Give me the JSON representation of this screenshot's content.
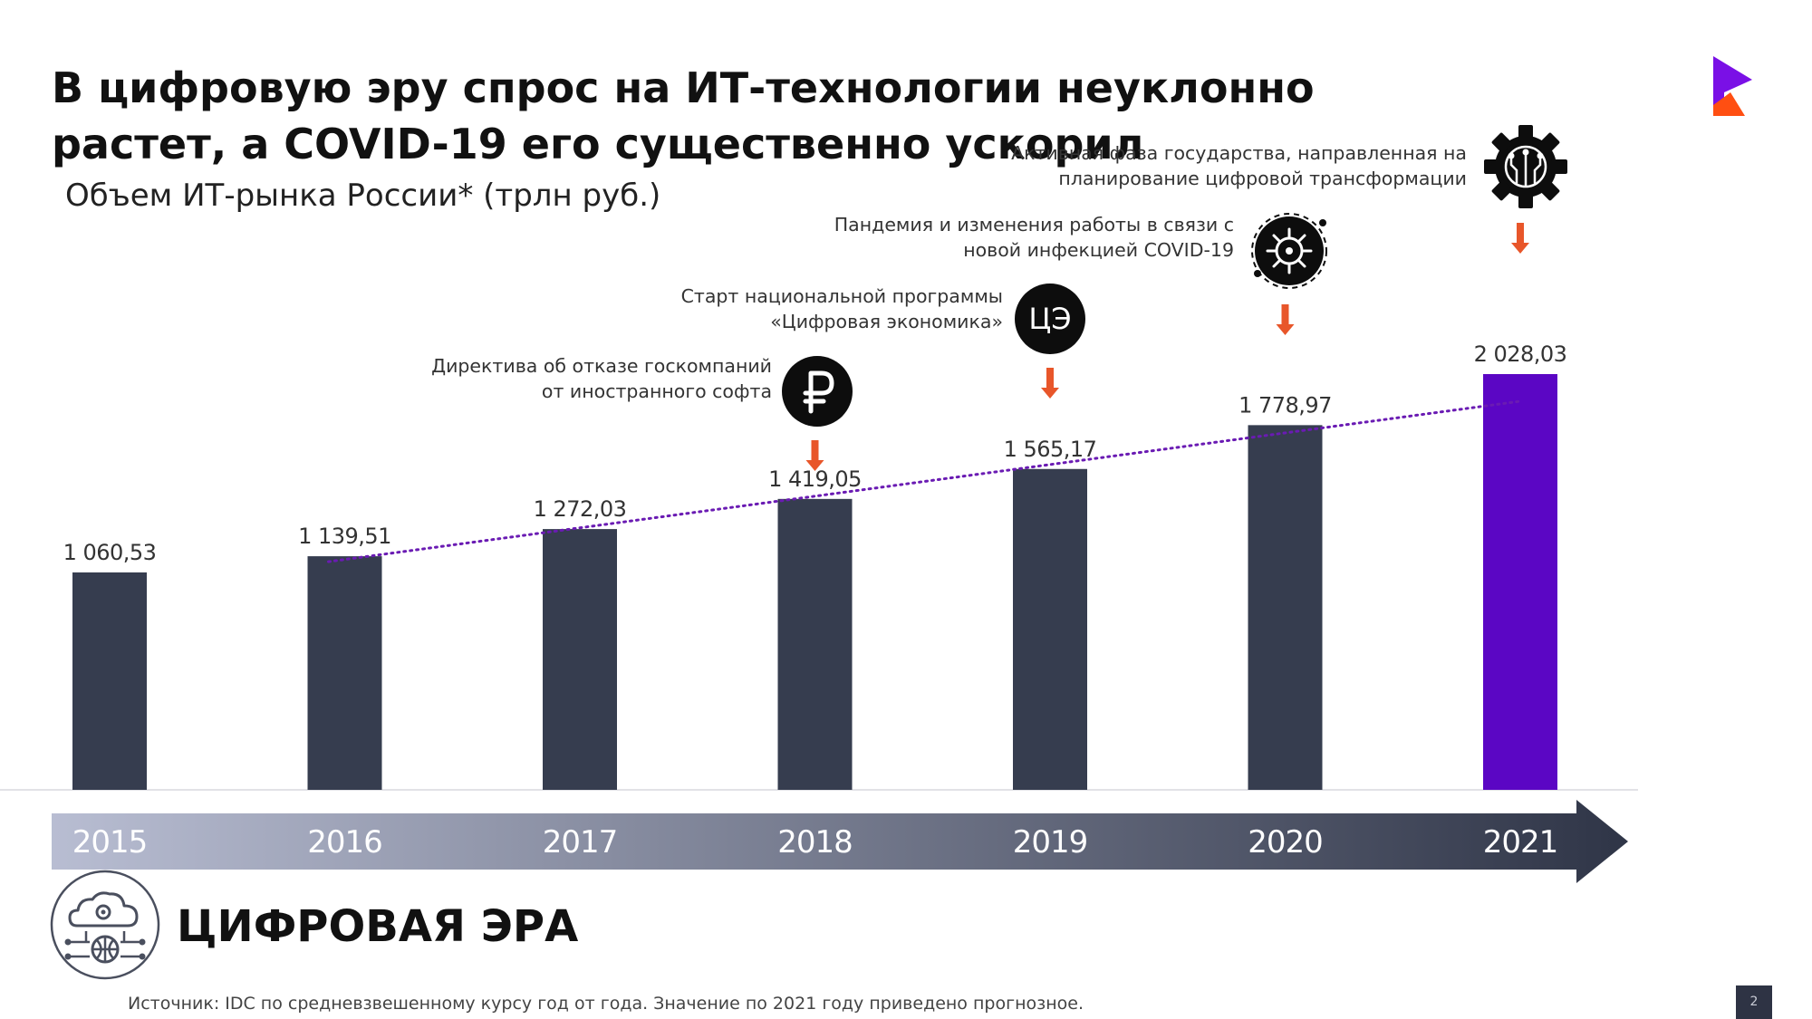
{
  "title": "В цифровую эру спрос на ИТ-технологии неуклонно растет, а COVID-19 его существенно ускорил",
  "subtitle": "Объем ИТ-рынка России* (трлн руб.)",
  "colors": {
    "bar": "#363d4f",
    "highlight_bar": "#5b06c4",
    "trend": "#6a1bb3",
    "arrow": "#e8562a",
    "timeline_start": "#b8bdd2",
    "timeline_end": "#2f3547"
  },
  "chart_data": {
    "type": "bar",
    "categories": [
      "2015",
      "2016",
      "2017",
      "2018",
      "2019",
      "2020",
      "2021"
    ],
    "values": [
      1060.53,
      1139.51,
      1272.03,
      1419.05,
      1565.17,
      1778.97,
      2028.03
    ],
    "value_labels": [
      "1 060,53",
      "1 139,51",
      "1 272,03",
      "1 419,05",
      "1 565,17",
      "1 778,97",
      "2 028,03"
    ],
    "highlighted": "2021",
    "trendline": {
      "style": "dotted",
      "from": "2016",
      "to": "2021"
    },
    "grid": false,
    "legend": "none",
    "ylim": [
      0,
      2028.03
    ]
  },
  "events": [
    {
      "year": "2018",
      "text": [
        "Директива об отказе госкомпаний",
        "от иностранного софта"
      ],
      "icon": "ruble-icon"
    },
    {
      "year": "2019",
      "text": [
        "Старт национальной программы",
        "«Цифровая экономика»"
      ],
      "icon": "digital-economy-icon",
      "badge": "ЦЭ"
    },
    {
      "year": "2020",
      "text": [
        "Пандемия и изменения работы в связи с",
        "новой инфекцией COVID-19"
      ],
      "icon": "virus-icon"
    },
    {
      "year": "2021",
      "text": [
        "Активная фаза государства, направленная на",
        "планирование цифровой трансформации"
      ],
      "icon": "gear-circuit-icon"
    }
  ],
  "era": {
    "label": "ЦИФРОВАЯ ЭРА",
    "icon": "cloud-network-icon"
  },
  "source": "Источник: IDC по средневзвешенному курсу год от года. Значение по 2021 году приведено прогнозное.",
  "page_number": "2"
}
